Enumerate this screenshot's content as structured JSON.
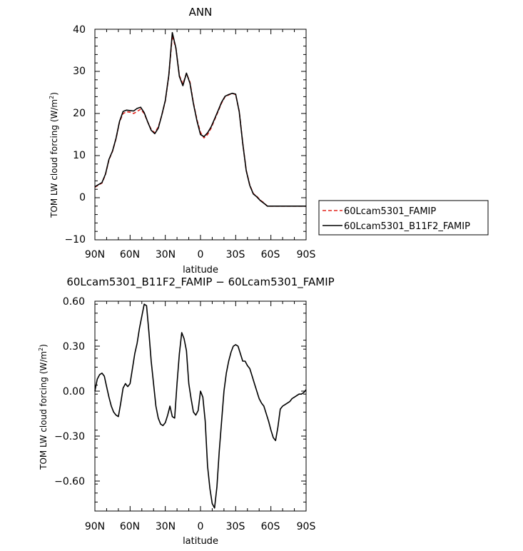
{
  "chart_data": [
    {
      "type": "line",
      "title": "ANN",
      "xlabel": "latitude",
      "ylabel": "TOM LW cloud forcing (W/m",
      "ylabel_sup": "2",
      "ylabel_close": ")",
      "xlim": [
        90,
        -90
      ],
      "ylim": [
        -10,
        40
      ],
      "xticks": [
        90,
        60,
        30,
        0,
        -30,
        -60,
        -90
      ],
      "xtick_labels": [
        "90N",
        "60N",
        "30N",
        "0",
        "30S",
        "60S",
        "90S"
      ],
      "yticks": [
        -10,
        0,
        10,
        20,
        30,
        40
      ],
      "ytick_labels": [
        "−10",
        "0",
        "10",
        "20",
        "30",
        "40"
      ],
      "legend": "right",
      "series": [
        {
          "name": "60Lcam5301_FAMIP",
          "color": "#e3261f",
          "dash": "dashed",
          "x": [
            90,
            87,
            84,
            81,
            78,
            75,
            72,
            69,
            66,
            63,
            60,
            57,
            54,
            51,
            48,
            45,
            42,
            39,
            36,
            33,
            30,
            27,
            24,
            21,
            18,
            15,
            12,
            9,
            6,
            3,
            0,
            -3,
            -6,
            -9,
            -12,
            -15,
            -18,
            -21,
            -24,
            -27,
            -30,
            -33,
            -36,
            -39,
            -42,
            -45,
            -48,
            -51,
            -54,
            -57,
            -60,
            -63,
            -66,
            -69,
            -72,
            -75,
            -78,
            -81,
            -84,
            -87,
            -90
          ],
          "y": [
            2.5,
            3.0,
            3.5,
            5.5,
            9.0,
            11.0,
            14.0,
            18.0,
            20.0,
            20.4,
            20.3,
            20.0,
            20.5,
            21.0,
            20.0,
            18.0,
            16.2,
            15.4,
            16.8,
            19.5,
            23.0,
            29.0,
            38.5,
            35.5,
            29.0,
            27.0,
            29.5,
            27.5,
            22.5,
            18.5,
            15.5,
            14.2,
            15.0,
            16.5,
            18.5,
            20.5,
            22.5,
            24.0,
            24.4,
            24.8,
            24.5,
            20.5,
            13.0,
            6.5,
            3.0,
            1.0,
            0.3,
            -0.6,
            -1.2,
            -2.0,
            -2.0,
            -2.0,
            -2.0,
            -2.0,
            -2.0,
            -2.0,
            -2.0,
            -2.0,
            -2.0,
            -2.0,
            -2.0
          ]
        },
        {
          "name": "60Lcam5301_B11F2_FAMIP",
          "color": "#000000",
          "dash": "solid",
          "x": [
            90,
            87,
            84,
            81,
            78,
            75,
            72,
            69,
            66,
            63,
            60,
            57,
            54,
            51,
            48,
            45,
            42,
            39,
            36,
            33,
            30,
            27,
            24,
            21,
            18,
            15,
            12,
            9,
            6,
            3,
            0,
            -3,
            -6,
            -9,
            -12,
            -15,
            -18,
            -21,
            -24,
            -27,
            -30,
            -33,
            -36,
            -39,
            -42,
            -45,
            -48,
            -51,
            -54,
            -57,
            -60,
            -63,
            -66,
            -69,
            -72,
            -75,
            -78,
            -81,
            -84,
            -87,
            -90
          ],
          "y": [
            2.6,
            3.1,
            3.6,
            5.6,
            9.1,
            11.1,
            14.1,
            18.1,
            20.5,
            20.8,
            20.7,
            20.6,
            21.2,
            21.5,
            20.2,
            18.0,
            16.0,
            15.2,
            16.5,
            19.6,
            23.1,
            29.1,
            39.2,
            35.6,
            28.8,
            26.6,
            29.6,
            27.2,
            22.3,
            18.2,
            15.0,
            14.5,
            15.4,
            16.8,
            18.7,
            20.7,
            22.7,
            24.1,
            24.5,
            24.8,
            24.6,
            20.4,
            12.9,
            6.4,
            2.9,
            0.9,
            0.2,
            -0.7,
            -1.3,
            -2.0,
            -2.0,
            -2.0,
            -2.0,
            -2.0,
            -2.0,
            -2.0,
            -2.0,
            -2.0,
            -2.0,
            -2.0,
            -2.0
          ]
        }
      ]
    },
    {
      "type": "line",
      "title": "60Lcam5301_B11F2_FAMIP − 60Lcam5301_FAMIP",
      "xlabel": "latitude",
      "ylabel": "TOM LW cloud forcing (W/m",
      "ylabel_sup": "2",
      "ylabel_close": ")",
      "xlim": [
        90,
        -90
      ],
      "ylim": [
        -0.8,
        0.6
      ],
      "xticks": [
        90,
        60,
        30,
        0,
        -30,
        -60,
        -90
      ],
      "xtick_labels": [
        "90N",
        "60N",
        "30N",
        "0",
        "30S",
        "60S",
        "90S"
      ],
      "yticks": [
        -0.6,
        -0.3,
        0.0,
        0.3,
        0.6
      ],
      "ytick_labels": [
        "−0.60",
        "−0.30",
        "0.00",
        "0.30",
        "0.60"
      ],
      "series": [
        {
          "color": "#000000",
          "x": [
            90,
            88,
            86,
            84,
            82,
            80,
            78,
            76,
            74,
            72,
            70,
            68,
            66,
            64,
            62,
            60,
            58,
            56,
            54,
            52,
            50,
            48,
            46,
            44,
            42,
            40,
            38,
            36,
            34,
            32,
            30,
            28,
            26,
            24,
            22,
            20,
            18,
            16,
            14,
            12,
            10,
            8,
            6,
            4,
            2,
            0,
            -2,
            -4,
            -6,
            -8,
            -10,
            -12,
            -14,
            -16,
            -18,
            -20,
            -22,
            -24,
            -26,
            -28,
            -30,
            -32,
            -34,
            -36,
            -38,
            -40,
            -42,
            -44,
            -46,
            -48,
            -50,
            -52,
            -54,
            -56,
            -58,
            -60,
            -62,
            -64,
            -66,
            -68,
            -70,
            -72,
            -74,
            -76,
            -78,
            -80,
            -82,
            -84,
            -86,
            -88,
            -90
          ],
          "y": [
            0.0,
            0.08,
            0.11,
            0.12,
            0.1,
            0.03,
            -0.04,
            -0.1,
            -0.14,
            -0.16,
            -0.17,
            -0.08,
            0.02,
            0.05,
            0.03,
            0.05,
            0.15,
            0.25,
            0.32,
            0.42,
            0.5,
            0.58,
            0.57,
            0.4,
            0.2,
            0.05,
            -0.1,
            -0.18,
            -0.22,
            -0.23,
            -0.21,
            -0.16,
            -0.1,
            -0.17,
            -0.18,
            0.05,
            0.25,
            0.39,
            0.35,
            0.27,
            0.05,
            -0.05,
            -0.14,
            -0.16,
            -0.13,
            0.0,
            -0.04,
            -0.2,
            -0.5,
            -0.65,
            -0.75,
            -0.78,
            -0.64,
            -0.4,
            -0.2,
            0.0,
            0.12,
            0.2,
            0.26,
            0.3,
            0.31,
            0.3,
            0.25,
            0.2,
            0.2,
            0.17,
            0.15,
            0.1,
            0.05,
            0.0,
            -0.05,
            -0.08,
            -0.1,
            -0.15,
            -0.2,
            -0.26,
            -0.31,
            -0.33,
            -0.24,
            -0.12,
            -0.1,
            -0.09,
            -0.08,
            -0.07,
            -0.05,
            -0.04,
            -0.03,
            -0.02,
            -0.02,
            -0.01,
            0.01
          ]
        }
      ]
    }
  ]
}
